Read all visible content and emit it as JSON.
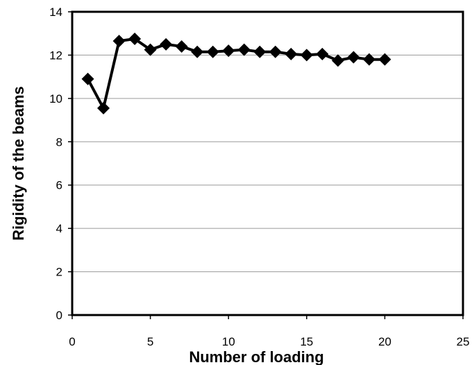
{
  "chart_data": {
    "type": "line",
    "title": "",
    "xlabel": "Number of loading",
    "ylabel": "Rigidity of the beams",
    "xlim": [
      0,
      25
    ],
    "ylim": [
      0,
      14
    ],
    "x_ticks": [
      0,
      5,
      10,
      15,
      20,
      25
    ],
    "y_ticks": [
      0,
      2,
      4,
      6,
      8,
      10,
      12,
      14
    ],
    "grid": "horizontal",
    "legend": "none",
    "marker": "diamond",
    "line_color": "#000000",
    "series": [
      {
        "x": [
          1,
          2,
          3,
          4,
          5,
          6,
          7,
          8,
          9,
          10,
          11,
          12,
          13,
          14,
          15,
          16,
          17,
          18,
          19,
          20
        ],
        "values": [
          10.9,
          9.55,
          12.65,
          12.75,
          12.25,
          12.5,
          12.4,
          12.15,
          12.15,
          12.2,
          12.25,
          12.15,
          12.15,
          12.05,
          12.0,
          12.05,
          11.75,
          11.9,
          11.8,
          11.8
        ]
      }
    ]
  }
}
